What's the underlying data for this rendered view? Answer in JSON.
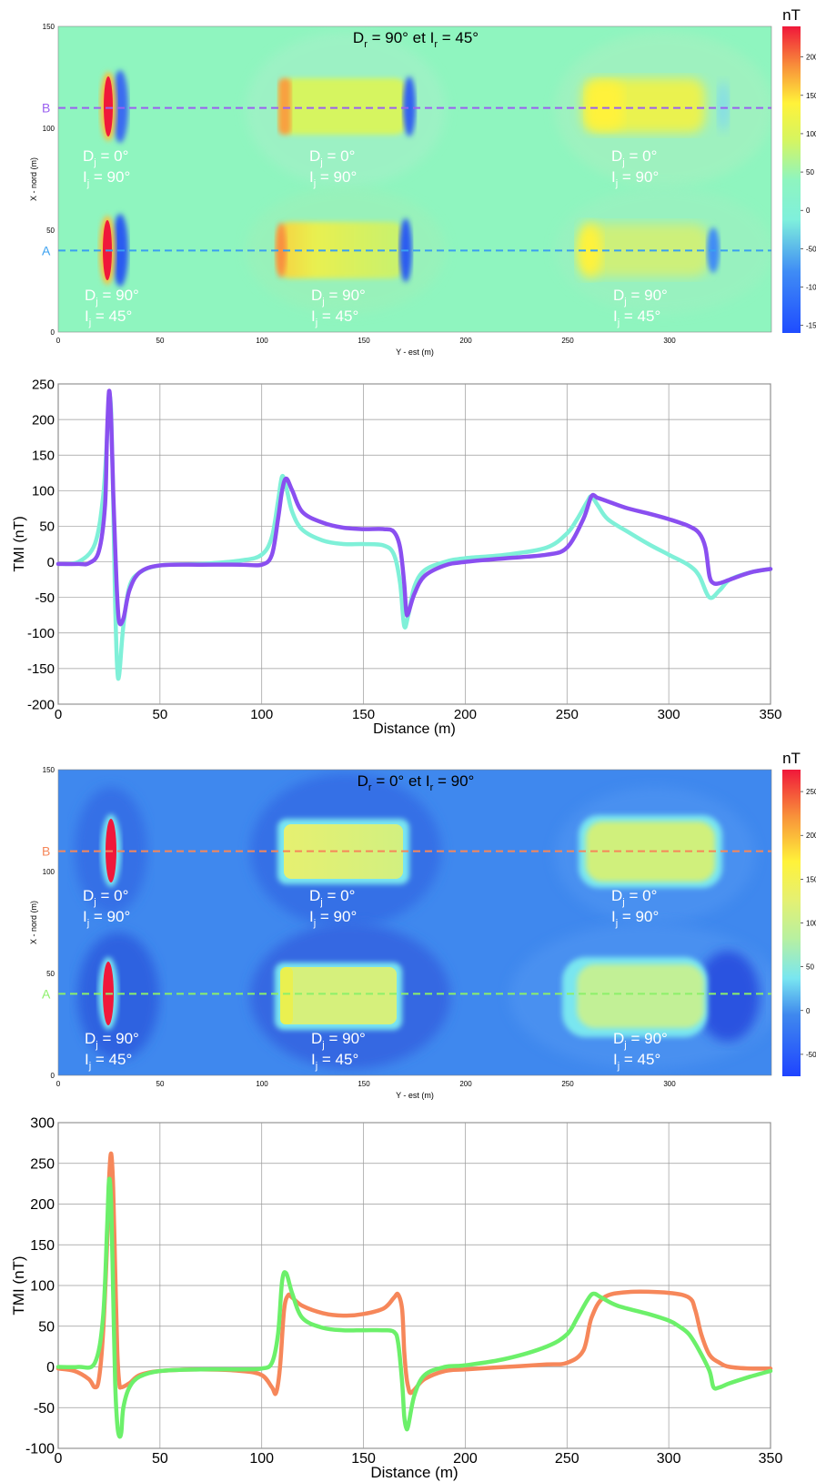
{
  "colors": {
    "map1_bg": "#8ff5bf",
    "map2_bg": "#3f88ee",
    "profile_B_top": "#8a4ff0",
    "profile_A_top": "#7ff0d8",
    "profile_B_bottom": "#f6875a",
    "profile_A_bottom": "#6cf06a",
    "grid": "#9a9a9a"
  },
  "chart_data": [
    {
      "type": "heatmap",
      "title": "Dr = 90°  et  Ir = 45°",
      "title_parts": {
        "D": "D",
        "Dsub": "r",
        "Dval": " = 90°  et  ",
        "I": "I",
        "Isub": "r",
        "Ival": " = 45°"
      },
      "xlabel": "Y - est (m)",
      "ylabel": "X - nord (m)",
      "xlim": [
        0,
        350
      ],
      "ylim": [
        0,
        150
      ],
      "xticks": [
        "0",
        "50",
        "100",
        "150",
        "200",
        "250",
        "300"
      ],
      "yticks": [
        "0",
        "50",
        "100",
        "150"
      ],
      "colorbar": {
        "unit": "nT",
        "ticks": [
          "200",
          "150",
          "100",
          "50",
          "0",
          "-50",
          "-100",
          "-150"
        ],
        "range": [
          -160,
          240
        ]
      },
      "profiles": [
        {
          "label": "B",
          "y": 110
        },
        {
          "label": "A",
          "y": 40
        }
      ],
      "bodies": [
        {
          "dec": "0°",
          "inc": "90°"
        },
        {
          "dec": "0°",
          "inc": "90°"
        },
        {
          "dec": "0°",
          "inc": "90°"
        },
        {
          "dec": "90°",
          "inc": "45°"
        },
        {
          "dec": "90°",
          "inc": "45°"
        },
        {
          "dec": "90°",
          "inc": "45°"
        }
      ]
    },
    {
      "type": "line",
      "xlabel": "Distance (m)",
      "ylabel": "TMI (nT)",
      "xlim": [
        0,
        350
      ],
      "ylim": [
        -200,
        250
      ],
      "xticks": [
        "0",
        "50",
        "100",
        "150",
        "200",
        "250",
        "300",
        "350"
      ],
      "yticks": [
        "250",
        "200",
        "150",
        "100",
        "50",
        "0",
        "-50",
        "-100",
        "-150",
        "-200"
      ],
      "grid": true,
      "series": [
        {
          "profile": "A",
          "color": "#7ff0d8",
          "x": [
            0,
            10,
            18,
            22,
            24,
            25,
            26,
            27,
            28,
            29,
            30,
            32,
            35,
            40,
            50,
            70,
            90,
            100,
            105,
            108,
            110,
            112,
            115,
            120,
            130,
            140,
            150,
            160,
            165,
            168,
            170,
            172,
            175,
            180,
            190,
            200,
            220,
            240,
            250,
            255,
            260,
            262,
            265,
            270,
            280,
            290,
            300,
            310,
            315,
            320,
            325,
            330,
            340,
            350
          ],
          "y": [
            -3,
            0,
            25,
            90,
            175,
            230,
            210,
            90,
            -60,
            -150,
            -158,
            -90,
            -35,
            -15,
            -5,
            -3,
            2,
            10,
            35,
            85,
            120,
            105,
            70,
            45,
            30,
            25,
            25,
            23,
            10,
            -30,
            -90,
            -75,
            -35,
            -12,
            0,
            5,
            10,
            20,
            40,
            60,
            85,
            92,
            80,
            60,
            42,
            25,
            10,
            -5,
            -20,
            -50,
            -40,
            -25,
            -15,
            -10
          ]
        },
        {
          "profile": "B",
          "color": "#8a4ff0",
          "x": [
            0,
            10,
            15,
            20,
            23,
            24,
            25,
            26,
            27,
            28,
            29,
            30,
            32,
            35,
            40,
            50,
            70,
            90,
            100,
            105,
            108,
            110,
            112,
            115,
            120,
            130,
            140,
            150,
            160,
            165,
            168,
            170,
            171,
            172,
            175,
            180,
            190,
            200,
            220,
            240,
            250,
            258,
            262,
            265,
            270,
            280,
            290,
            300,
            310,
            315,
            318,
            320,
            322,
            325,
            330,
            340,
            350
          ],
          "y": [
            -3,
            -3,
            -2,
            15,
            80,
            180,
            240,
            200,
            100,
            20,
            -50,
            -85,
            -80,
            -40,
            -15,
            -5,
            -4,
            -4,
            -4,
            10,
            60,
            100,
            117,
            100,
            70,
            55,
            48,
            46,
            46,
            42,
            20,
            -30,
            -70,
            -72,
            -45,
            -20,
            -5,
            0,
            5,
            10,
            20,
            60,
            92,
            90,
            85,
            75,
            68,
            60,
            50,
            40,
            20,
            -20,
            -30,
            -30,
            -25,
            -15,
            -10
          ]
        }
      ]
    },
    {
      "type": "heatmap",
      "title": "Dr = 0°  et  Ir = 90°",
      "title_parts": {
        "D": "D",
        "Dsub": "r",
        "Dval": " = 0°  et  ",
        "I": "I",
        "Isub": "r",
        "Ival": " = 90°"
      },
      "xlabel": "Y - est (m)",
      "ylabel": "X - nord (m)",
      "xlim": [
        0,
        350
      ],
      "ylim": [
        0,
        150
      ],
      "xticks": [
        "0",
        "50",
        "100",
        "150",
        "200",
        "250",
        "300"
      ],
      "yticks": [
        "0",
        "50",
        "100",
        "150"
      ],
      "colorbar": {
        "unit": "nT",
        "ticks": [
          "250",
          "200",
          "150",
          "100",
          "50",
          "0",
          "-50"
        ],
        "range": [
          -75,
          275
        ]
      },
      "profiles": [
        {
          "label": "B",
          "y": 110
        },
        {
          "label": "A",
          "y": 40
        }
      ],
      "bodies": [
        {
          "dec": "0°",
          "inc": "90°"
        },
        {
          "dec": "0°",
          "inc": "90°"
        },
        {
          "dec": "0°",
          "inc": "90°"
        },
        {
          "dec": "90°",
          "inc": "45°"
        },
        {
          "dec": "90°",
          "inc": "45°"
        },
        {
          "dec": "90°",
          "inc": "45°"
        }
      ]
    },
    {
      "type": "line",
      "xlabel": "Distance (m)",
      "ylabel": "TMI (nT)",
      "xlim": [
        0,
        350
      ],
      "ylim": [
        -100,
        300
      ],
      "xticks": [
        "0",
        "50",
        "100",
        "150",
        "200",
        "250",
        "300",
        "350"
      ],
      "yticks": [
        "300",
        "250",
        "200",
        "150",
        "100",
        "50",
        "0",
        "-50",
        "-100"
      ],
      "grid": true,
      "series": [
        {
          "profile": "B",
          "color": "#f6875a",
          "x": [
            0,
            8,
            15,
            18,
            20,
            22,
            24,
            25,
            26,
            27,
            28,
            29,
            30,
            31,
            35,
            40,
            50,
            70,
            90,
            100,
            105,
            107,
            109,
            111,
            113,
            115,
            120,
            130,
            140,
            150,
            160,
            165,
            167,
            169,
            170,
            171,
            172,
            173,
            175,
            180,
            190,
            200,
            220,
            240,
            250,
            258,
            262,
            268,
            280,
            300,
            310,
            313,
            316,
            320,
            325,
            330,
            340,
            350
          ],
          "y": [
            -2,
            -5,
            -15,
            -25,
            -15,
            40,
            150,
            230,
            262,
            220,
            120,
            20,
            -20,
            -25,
            -20,
            -10,
            -5,
            -3,
            -5,
            -10,
            -25,
            -32,
            0,
            70,
            88,
            85,
            75,
            66,
            63,
            65,
            72,
            85,
            89,
            70,
            20,
            -10,
            -25,
            -32,
            -28,
            -15,
            -5,
            -3,
            0,
            3,
            5,
            20,
            60,
            85,
            92,
            91,
            85,
            70,
            40,
            15,
            5,
            0,
            -2,
            -2
          ]
        },
        {
          "profile": "A",
          "color": "#6cf06a",
          "x": [
            0,
            10,
            18,
            22,
            24,
            25,
            26,
            27,
            28,
            29,
            30,
            31,
            32,
            35,
            40,
            50,
            70,
            90,
            100,
            105,
            108,
            110,
            112,
            115,
            120,
            130,
            140,
            150,
            160,
            165,
            167,
            169,
            170,
            171,
            172,
            175,
            180,
            190,
            200,
            220,
            240,
            250,
            255,
            260,
            263,
            267,
            275,
            290,
            300,
            305,
            310,
            315,
            320,
            322,
            325,
            330,
            340,
            350
          ],
          "y": [
            0,
            0,
            5,
            60,
            170,
            230,
            200,
            90,
            -20,
            -70,
            -85,
            -80,
            -50,
            -25,
            -12,
            -5,
            -3,
            -3,
            -2,
            5,
            40,
            105,
            115,
            90,
            60,
            48,
            45,
            45,
            45,
            43,
            30,
            -20,
            -60,
            -75,
            -72,
            -35,
            -10,
            0,
            2,
            10,
            25,
            40,
            60,
            82,
            90,
            85,
            75,
            65,
            57,
            50,
            40,
            20,
            -5,
            -25,
            -25,
            -20,
            -12,
            -5
          ]
        }
      ]
    }
  ]
}
